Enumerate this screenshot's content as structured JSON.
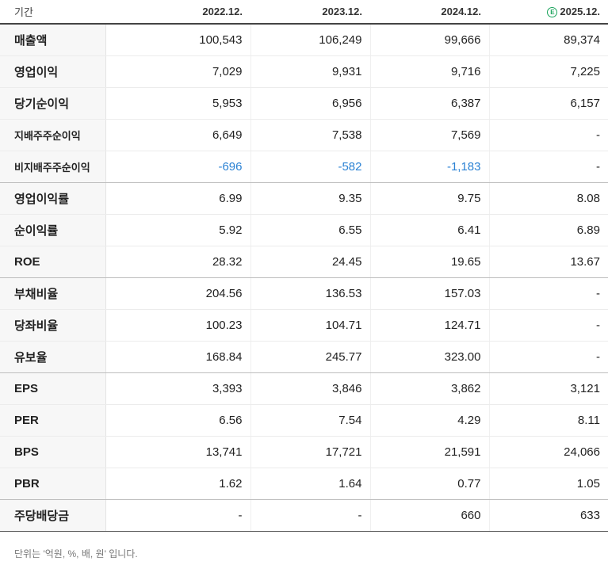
{
  "header": {
    "label": "기간",
    "periods": [
      "2022.12.",
      "2023.12.",
      "2024.12.",
      "2025.12."
    ],
    "estimate_mark": "E",
    "estimate_color": "#19a35b"
  },
  "rows": [
    {
      "label": "매출액",
      "values": [
        "100,543",
        "106,249",
        "99,666",
        "89,374"
      ]
    },
    {
      "label": "영업이익",
      "values": [
        "7,029",
        "9,931",
        "9,716",
        "7,225"
      ]
    },
    {
      "label": "당기순이익",
      "values": [
        "5,953",
        "6,956",
        "6,387",
        "6,157"
      ]
    },
    {
      "label": "지배주주순이익",
      "values": [
        "6,649",
        "7,538",
        "7,569",
        "-"
      ]
    },
    {
      "label": "비지배주주순이익",
      "values": [
        "-696",
        "-582",
        "-1,183",
        "-"
      ]
    },
    {
      "label": "영업이익률",
      "values": [
        "6.99",
        "9.35",
        "9.75",
        "8.08"
      ]
    },
    {
      "label": "순이익률",
      "values": [
        "5.92",
        "6.55",
        "6.41",
        "6.89"
      ]
    },
    {
      "label": "ROE",
      "values": [
        "28.32",
        "24.45",
        "19.65",
        "13.67"
      ]
    },
    {
      "label": "부채비율",
      "values": [
        "204.56",
        "136.53",
        "157.03",
        "-"
      ]
    },
    {
      "label": "당좌비율",
      "values": [
        "100.23",
        "104.71",
        "124.71",
        "-"
      ]
    },
    {
      "label": "유보율",
      "values": [
        "168.84",
        "245.77",
        "323.00",
        "-"
      ]
    },
    {
      "label": "EPS",
      "values": [
        "3,393",
        "3,846",
        "3,862",
        "3,121"
      ]
    },
    {
      "label": "PER",
      "values": [
        "6.56",
        "7.54",
        "4.29",
        "8.11"
      ]
    },
    {
      "label": "BPS",
      "values": [
        "13,741",
        "17,721",
        "21,591",
        "24,066"
      ]
    },
    {
      "label": "PBR",
      "values": [
        "1.62",
        "1.64",
        "0.77",
        "1.05"
      ]
    },
    {
      "label": "주당배당금",
      "values": [
        "-",
        "-",
        "660",
        "633"
      ]
    }
  ],
  "negative_color": "#2b82d4",
  "footnote": "단위는 '억원, %, 배, 원' 입니다."
}
